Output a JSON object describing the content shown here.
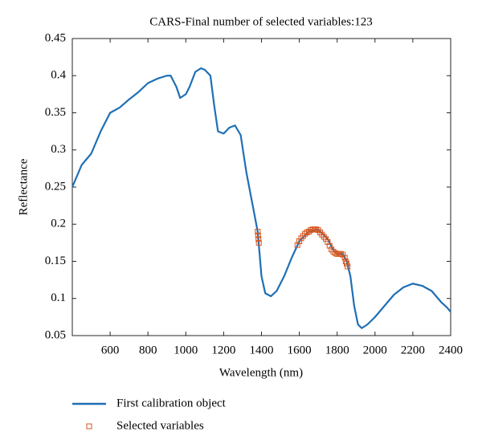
{
  "chart_data": {
    "type": "line",
    "title": "CARS-Final number of selected variables:123",
    "xlabel": "Wavelength (nm)",
    "ylabel": "Reflectance",
    "xlim": [
      400,
      2400
    ],
    "xticks": [
      600,
      800,
      1000,
      1200,
      1400,
      1600,
      1800,
      2000,
      2200,
      2400
    ],
    "ylim": [
      0.05,
      0.45
    ],
    "yticks": [
      0.05,
      0.1,
      0.15,
      0.2,
      0.25,
      0.3,
      0.35,
      0.4,
      0.45
    ],
    "legend": "bottom",
    "series": [
      {
        "name": "First calibration object",
        "type": "line",
        "color": "#1f6fb5",
        "x": [
          400,
          450,
          500,
          550,
          600,
          650,
          700,
          750,
          800,
          850,
          900,
          920,
          950,
          970,
          1000,
          1020,
          1050,
          1080,
          1100,
          1130,
          1150,
          1170,
          1200,
          1230,
          1260,
          1290,
          1320,
          1350,
          1380,
          1400,
          1420,
          1450,
          1480,
          1520,
          1560,
          1600,
          1650,
          1700,
          1750,
          1780,
          1800,
          1830,
          1850,
          1870,
          1890,
          1910,
          1930,
          1960,
          2000,
          2050,
          2100,
          2150,
          2200,
          2250,
          2300,
          2350,
          2380,
          2400
        ],
        "values": [
          0.25,
          0.28,
          0.295,
          0.325,
          0.35,
          0.357,
          0.368,
          0.378,
          0.39,
          0.396,
          0.4,
          0.4,
          0.385,
          0.37,
          0.375,
          0.385,
          0.405,
          0.41,
          0.408,
          0.4,
          0.36,
          0.325,
          0.322,
          0.33,
          0.333,
          0.32,
          0.27,
          0.23,
          0.19,
          0.13,
          0.107,
          0.103,
          0.11,
          0.13,
          0.155,
          0.177,
          0.19,
          0.193,
          0.18,
          0.165,
          0.16,
          0.16,
          0.15,
          0.13,
          0.09,
          0.065,
          0.06,
          0.065,
          0.075,
          0.09,
          0.105,
          0.115,
          0.12,
          0.117,
          0.11,
          0.095,
          0.088,
          0.082
        ]
      },
      {
        "name": "Selected variables",
        "type": "scatter",
        "color": "#d9541a",
        "x": [
          1380,
          1382,
          1384,
          1386,
          1590,
          1600,
          1610,
          1620,
          1630,
          1640,
          1650,
          1660,
          1670,
          1680,
          1690,
          1700,
          1710,
          1720,
          1730,
          1740,
          1750,
          1760,
          1770,
          1780,
          1790,
          1800,
          1810,
          1820,
          1830,
          1840,
          1845,
          1850,
          1855
        ],
        "values": [
          0.19,
          0.185,
          0.18,
          0.175,
          0.172,
          0.177,
          0.181,
          0.184,
          0.187,
          0.189,
          0.19,
          0.192,
          0.193,
          0.193,
          0.193,
          0.192,
          0.189,
          0.186,
          0.183,
          0.18,
          0.176,
          0.171,
          0.166,
          0.163,
          0.161,
          0.16,
          0.16,
          0.16,
          0.159,
          0.155,
          0.15,
          0.147,
          0.143
        ]
      }
    ]
  }
}
